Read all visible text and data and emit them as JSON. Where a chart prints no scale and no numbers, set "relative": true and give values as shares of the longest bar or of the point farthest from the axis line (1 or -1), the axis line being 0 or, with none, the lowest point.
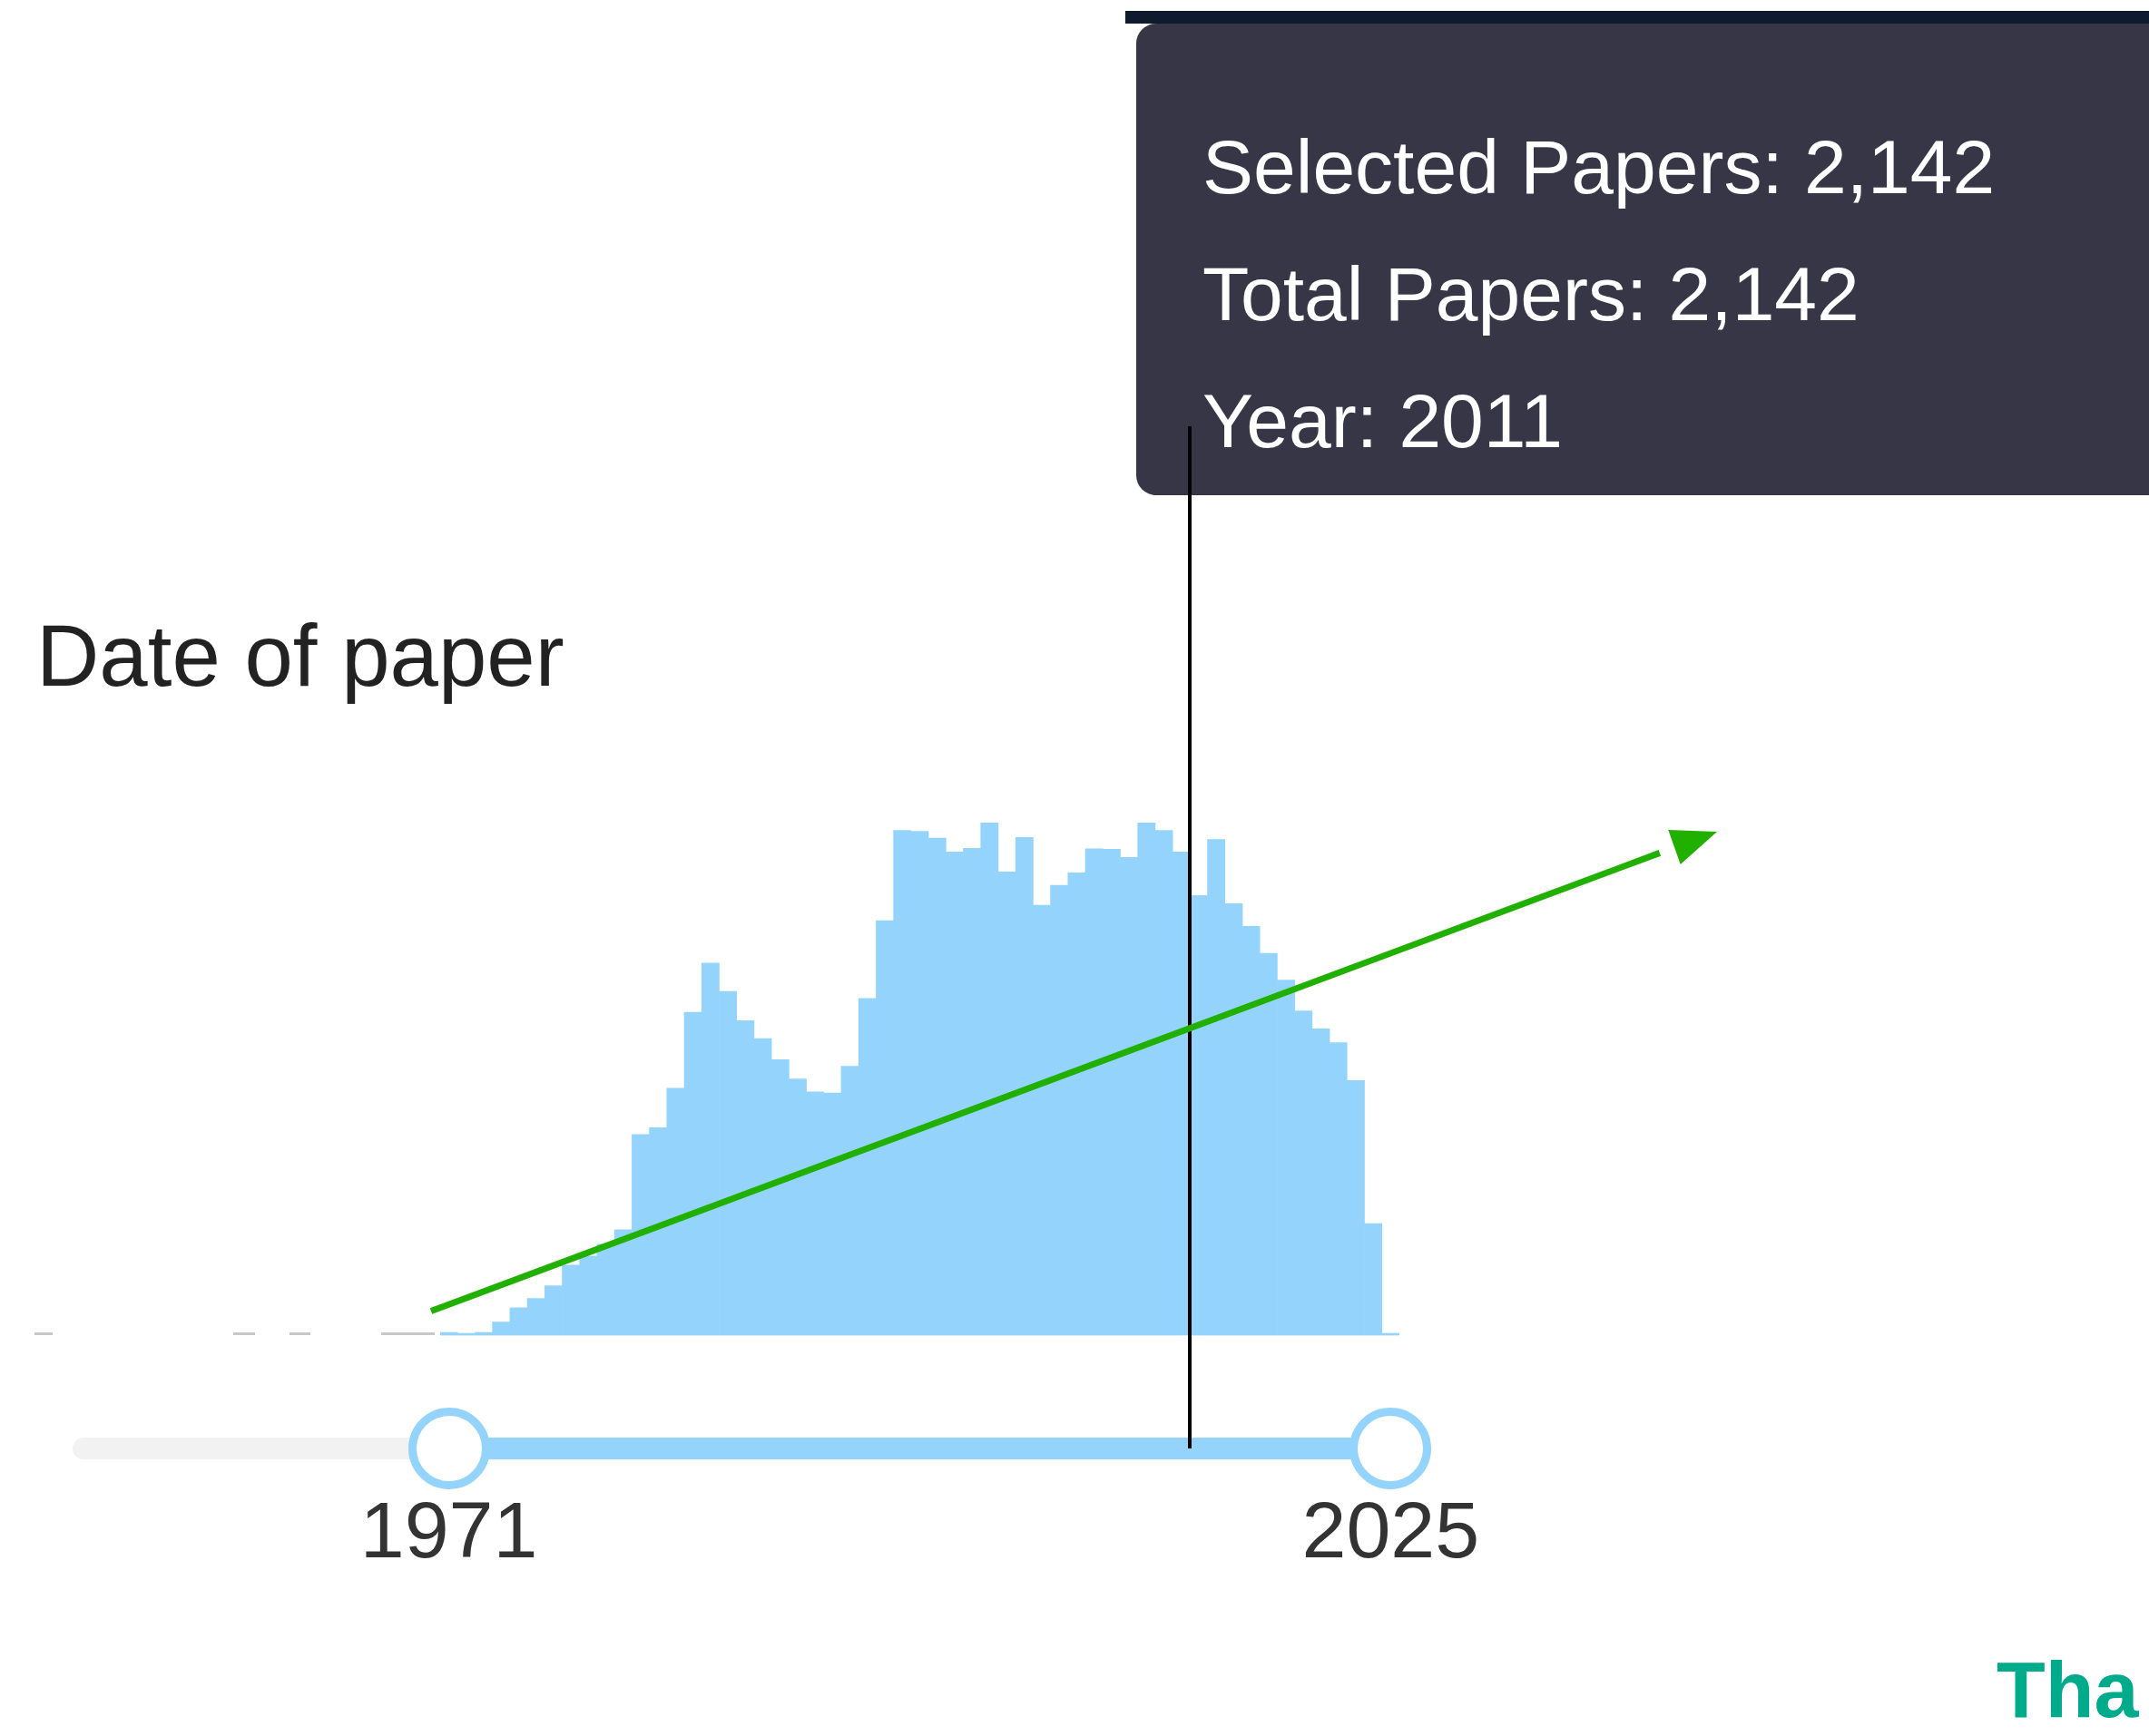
{
  "chart_data": {
    "type": "bar",
    "title": "Date of paper",
    "relative": true,
    "categories": [
      "1971",
      null,
      null,
      null,
      null,
      null,
      null,
      null,
      null,
      null,
      null,
      null,
      null,
      null,
      null,
      null,
      null,
      null,
      null,
      null,
      null,
      null,
      null,
      null,
      null,
      null,
      null,
      null,
      null,
      null,
      null,
      null,
      null,
      null,
      null,
      null,
      null,
      null,
      null,
      null,
      null,
      null,
      null,
      null,
      null,
      null,
      null,
      null,
      null,
      null,
      null,
      null,
      null,
      null,
      "2025"
    ],
    "values": [
      0.006,
      0.004,
      0.006,
      0.026,
      0.054,
      0.072,
      0.097,
      0.137,
      0.155,
      0.178,
      0.206,
      0.392,
      0.405,
      0.482,
      0.63,
      0.726,
      0.671,
      0.614,
      0.579,
      0.538,
      0.5,
      0.475,
      0.473,
      0.525,
      0.657,
      0.809,
      0.985,
      0.983,
      0.97,
      0.943,
      0.95,
      1,
      0.904,
      0.971,
      0.839,
      0.878,
      0.902,
      0.949,
      0.948,
      0.932,
      1,
      0.985,
      0.943,
      0.858,
      0.967,
      0.842,
      0.798,
      0.745,
      0.693,
      0.633,
      0.598,
      0.571,
      0.497,
      0.218,
      0.004
    ],
    "color": "#94d4fc",
    "annotations": [
      "Selected Papers: 2,142",
      "Total Papers: 2,142",
      "Year: 2011",
      "Tha"
    ]
  }
}
